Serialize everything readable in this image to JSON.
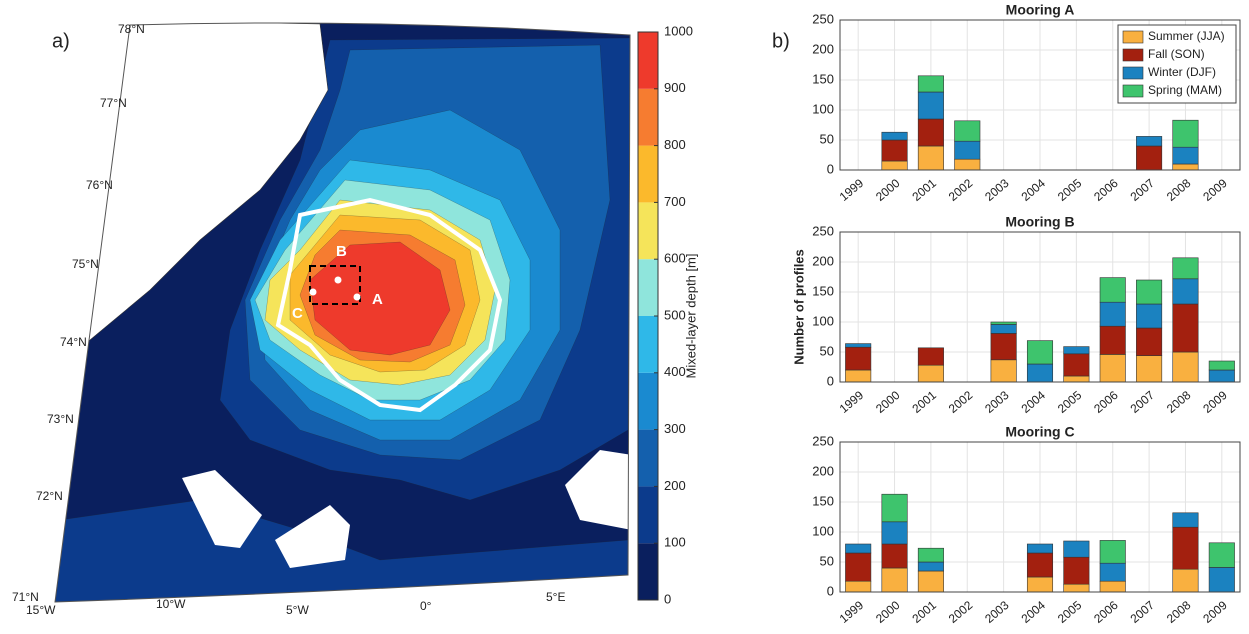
{
  "chart_data": [
    {
      "type": "contour",
      "panel_label": "a)",
      "colorbar_label": "Mixed-layer depth [m]",
      "cticks": [
        0,
        100,
        200,
        300,
        400,
        500,
        600,
        700,
        800,
        900,
        1000
      ],
      "colors": [
        "#0a1f5e",
        "#0c3b8c",
        "#1460ad",
        "#1a8ad0",
        "#2fb8e8",
        "#8fe5dc",
        "#f5e45a",
        "#fbb92c",
        "#f67c30",
        "#ee3a2c"
      ],
      "lat_labels": [
        "78°N",
        "77°N",
        "76°N",
        "75°N",
        "74°N",
        "73°N",
        "72°N",
        "71°N"
      ],
      "lon_labels": [
        "15°W",
        "10°W",
        "5°W",
        "0°",
        "5°E"
      ],
      "moorings": [
        "A",
        "B",
        "C"
      ]
    },
    {
      "type": "bar",
      "stacked": true,
      "panel_label": "b)",
      "title": "Mooring A",
      "categories": [
        "1999",
        "2000",
        "2001",
        "2002",
        "2003",
        "2004",
        "2005",
        "2006",
        "2007",
        "2008",
        "2009"
      ],
      "series": [
        {
          "name": "Summer (JJA)",
          "color": "#f9b040",
          "values": [
            0,
            15,
            40,
            18,
            0,
            0,
            0,
            0,
            0,
            10,
            0
          ]
        },
        {
          "name": "Fall (SON)",
          "color": "#a3200f",
          "values": [
            0,
            35,
            45,
            0,
            0,
            0,
            0,
            0,
            40,
            0,
            0
          ]
        },
        {
          "name": "Winter (DJF)",
          "color": "#1b82c0",
          "values": [
            0,
            13,
            45,
            30,
            0,
            0,
            0,
            0,
            16,
            28,
            0
          ]
        },
        {
          "name": "Spring (MAM)",
          "color": "#3ec46d",
          "values": [
            0,
            0,
            27,
            34,
            0,
            0,
            0,
            0,
            0,
            45,
            0
          ]
        }
      ],
      "ylim": [
        0,
        250
      ],
      "yticks": [
        0,
        50,
        100,
        150,
        200,
        250
      ],
      "grid": true,
      "legend": "upper right"
    },
    {
      "type": "bar",
      "stacked": true,
      "title": "Mooring B",
      "ylabel": "Number of profiles",
      "categories": [
        "1999",
        "2000",
        "2001",
        "2002",
        "2003",
        "2004",
        "2005",
        "2006",
        "2007",
        "2008",
        "2009"
      ],
      "series": [
        {
          "color": "#f9b040",
          "values": [
            20,
            0,
            28,
            0,
            37,
            0,
            10,
            46,
            44,
            50,
            0
          ]
        },
        {
          "color": "#a3200f",
          "values": [
            38,
            0,
            29,
            0,
            44,
            0,
            37,
            47,
            46,
            80,
            0
          ]
        },
        {
          "color": "#1b82c0",
          "values": [
            6,
            0,
            0,
            0,
            15,
            30,
            12,
            40,
            40,
            42,
            20
          ]
        },
        {
          "color": "#3ec46d",
          "values": [
            0,
            0,
            0,
            0,
            4,
            39,
            0,
            41,
            40,
            35,
            15
          ]
        }
      ],
      "ylim": [
        0,
        250
      ],
      "yticks": [
        0,
        50,
        100,
        150,
        200,
        250
      ],
      "grid": true
    },
    {
      "type": "bar",
      "stacked": true,
      "title": "Mooring C",
      "categories": [
        "1999",
        "2000",
        "2001",
        "2002",
        "2003",
        "2004",
        "2005",
        "2006",
        "2007",
        "2008",
        "2009"
      ],
      "series": [
        {
          "color": "#f9b040",
          "values": [
            18,
            40,
            35,
            0,
            0,
            25,
            13,
            18,
            0,
            38,
            0
          ]
        },
        {
          "color": "#a3200f",
          "values": [
            47,
            40,
            0,
            0,
            0,
            40,
            45,
            0,
            0,
            70,
            0
          ]
        },
        {
          "color": "#1b82c0",
          "values": [
            15,
            37,
            15,
            0,
            0,
            15,
            27,
            30,
            0,
            24,
            41
          ]
        },
        {
          "color": "#3ec46d",
          "values": [
            0,
            46,
            23,
            0,
            0,
            0,
            0,
            38,
            0,
            0,
            41
          ]
        }
      ],
      "ylim": [
        0,
        250
      ],
      "yticks": [
        0,
        50,
        100,
        150,
        200,
        250
      ],
      "grid": true
    }
  ]
}
